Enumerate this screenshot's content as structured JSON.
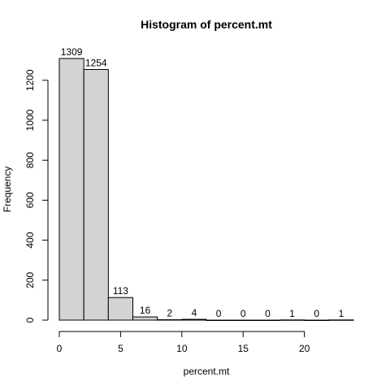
{
  "chart_data": {
    "type": "bar",
    "title": "Histogram of percent.mt",
    "xlabel": "percent.mt",
    "ylabel": "Frequency",
    "bin_edges": [
      0,
      2,
      4,
      6,
      8,
      10,
      12,
      14,
      16,
      18,
      20,
      22,
      24
    ],
    "values": [
      1309,
      1254,
      113,
      16,
      2,
      4,
      0,
      0,
      0,
      1,
      0,
      1
    ],
    "bar_labels": [
      "1309",
      "1254",
      "113",
      "16",
      "2",
      "4",
      "0",
      "0",
      "0",
      "1",
      "0",
      "1"
    ],
    "xlim": [
      0,
      24
    ],
    "ylim": [
      0,
      1309
    ],
    "x_ticks": [
      0,
      5,
      10,
      15,
      20
    ],
    "x_tick_labels": [
      "0",
      "5",
      "10",
      "15",
      "20"
    ],
    "y_ticks": [
      0,
      200,
      400,
      600,
      800,
      1000,
      1200
    ],
    "y_tick_labels": [
      "0",
      "200",
      "400",
      "600",
      "800",
      "1000",
      "1200"
    ],
    "bar_color": "#d3d3d3",
    "grid": false,
    "legend": "none"
  }
}
